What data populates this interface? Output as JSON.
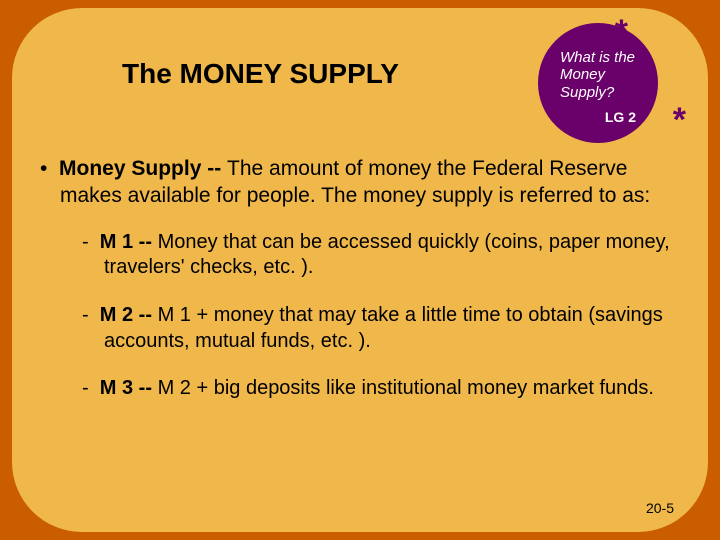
{
  "title": "The MONEY SUPPLY",
  "circle": {
    "question": "What is the\nMoney\nSupply?",
    "lg": "LG 2",
    "star": "*"
  },
  "main": {
    "lead": "Money Supply -- ",
    "text": "The amount of money the Federal Reserve makes available for people. The money supply is referred to as:"
  },
  "subs": [
    {
      "lead": "M 1 -- ",
      "text": "Money that can be accessed quickly (coins, paper money, travelers' checks, etc. )."
    },
    {
      "lead": "M 2 -- ",
      "text": "M 1 + money that may take a little time to obtain (savings accounts, mutual funds, etc. )."
    },
    {
      "lead": "M 3 -- ",
      "text": "M 2 + big deposits like institutional money market funds."
    }
  ],
  "pagenum": "20-5",
  "colors": {
    "outer_bg": "#ca5d00",
    "slide_bg": "#f0b84a",
    "circle_bg": "#6a006a",
    "circle_text": "#ffffff",
    "body_text": "#000000"
  }
}
